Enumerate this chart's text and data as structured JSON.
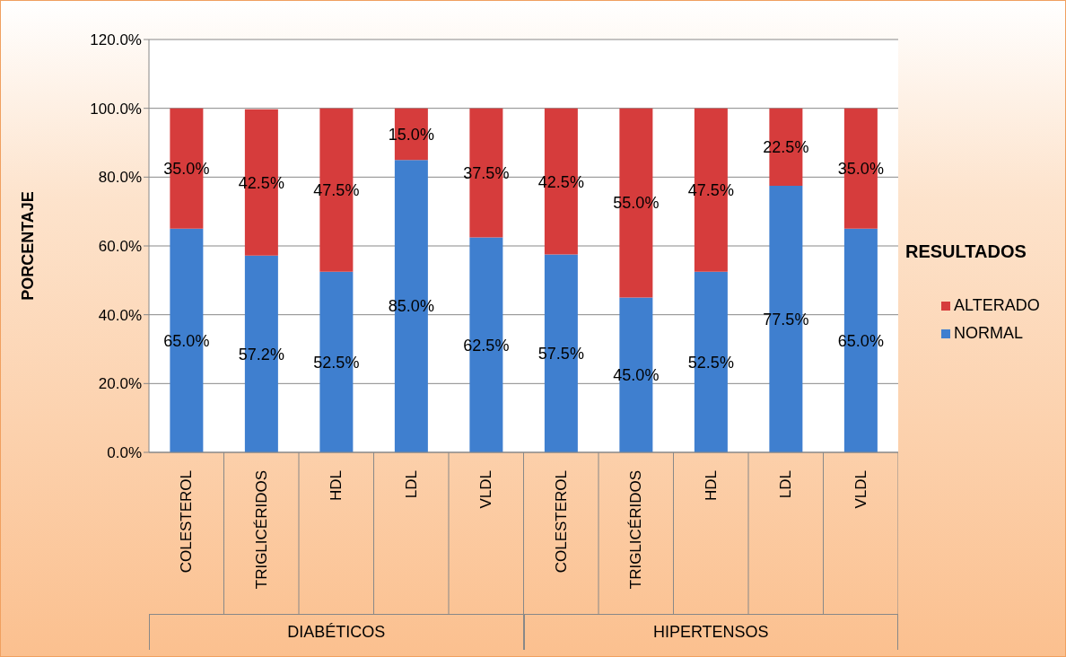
{
  "chart_data": {
    "type": "bar",
    "stacked": true,
    "ylabel": "PORCENTAJE",
    "legend_title": "RESULTADOS",
    "legend": "right",
    "grid": "y",
    "categories": [
      "COLESTEROL",
      "TRIGLICÉRIDOS",
      "HDL",
      "LDL",
      "VLDL",
      "COLESTEROL",
      "TRIGLICÉRIDOS",
      "HDL",
      "LDL",
      "VLDL"
    ],
    "annotations": [
      "DIABÉTICOS",
      "HIPERTENSOS"
    ],
    "ylim": [
      0,
      120
    ],
    "yticks": [
      {
        "value": 0,
        "label": "0.0%"
      },
      {
        "value": 20,
        "label": "20.0%"
      },
      {
        "value": 40,
        "label": "40.0%"
      },
      {
        "value": 60,
        "label": "60.0%"
      },
      {
        "value": 80,
        "label": "80.0%"
      },
      {
        "value": 100,
        "label": "100.0%"
      },
      {
        "value": 120,
        "label": "120.0%"
      }
    ],
    "series": [
      {
        "name": "NORMAL",
        "color": "#3f7fcf",
        "values": [
          65.0,
          57.2,
          52.5,
          85.0,
          62.5,
          57.5,
          45.0,
          52.5,
          77.5,
          65.0
        ],
        "value_labels": [
          "65.0%",
          "57.2%",
          "52.5%",
          "85.0%",
          "62.5%",
          "57.5%",
          "45.0%",
          "52.5%",
          "77.5%",
          "65.0%"
        ]
      },
      {
        "name": "ALTERADO",
        "color": "#d63c3c",
        "values": [
          35.0,
          42.5,
          47.5,
          15.0,
          37.5,
          42.5,
          55.0,
          47.5,
          22.5,
          35.0
        ],
        "value_labels": [
          "35.0%",
          "42.5%",
          "47.5%",
          "15.0%",
          "37.5%",
          "42.5%",
          "55.0%",
          "47.5%",
          "22.5%",
          "35.0%"
        ]
      }
    ]
  }
}
